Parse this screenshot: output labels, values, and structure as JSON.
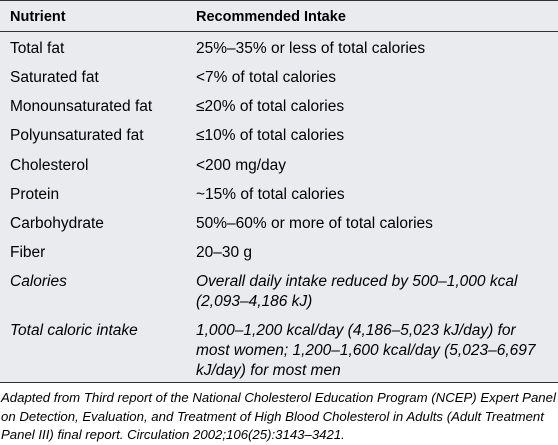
{
  "table": {
    "headers": {
      "nutrient": "Nutrient",
      "intake": "Recommended Intake"
    },
    "rows": [
      {
        "nutrient": "Total fat",
        "intake": "25%–35% or less of total calories"
      },
      {
        "nutrient": "Saturated fat",
        "intake": "<7% of total calories"
      },
      {
        "nutrient": "Monounsaturated fat",
        "intake": "≤20% of total calories"
      },
      {
        "nutrient": "Polyunsaturated fat",
        "intake": "≤10% of total calories"
      },
      {
        "nutrient": "Cholesterol",
        "intake": "<200 mg/day"
      },
      {
        "nutrient": "Protein",
        "intake": "~15% of total calories"
      },
      {
        "nutrient": "Carbohydrate",
        "intake": "50%–60% or more of total calories"
      },
      {
        "nutrient": "Fiber",
        "intake": "20–30 g"
      },
      {
        "nutrient": "Calories",
        "intake": "Overall daily intake reduced by 500–1,000 kcal (2,093–4,186 kJ)"
      },
      {
        "nutrient": "Total caloric intake",
        "intake": "1,000–1,200 kcal/day (4,186–5,023 kJ/day) for most women; 1,200–1,600 kcal/day (5,023–6,697 kJ/day) for most men"
      }
    ]
  },
  "footnote": "Adapted from Third report of the National Cholesterol Education Program (NCEP) Expert Panel on Detection, Evaluation, and Treatment of High Blood Cholesterol in Adults (Adult Treatment Panel III) final report. Circulation 2002;106(25):3143–3421."
}
